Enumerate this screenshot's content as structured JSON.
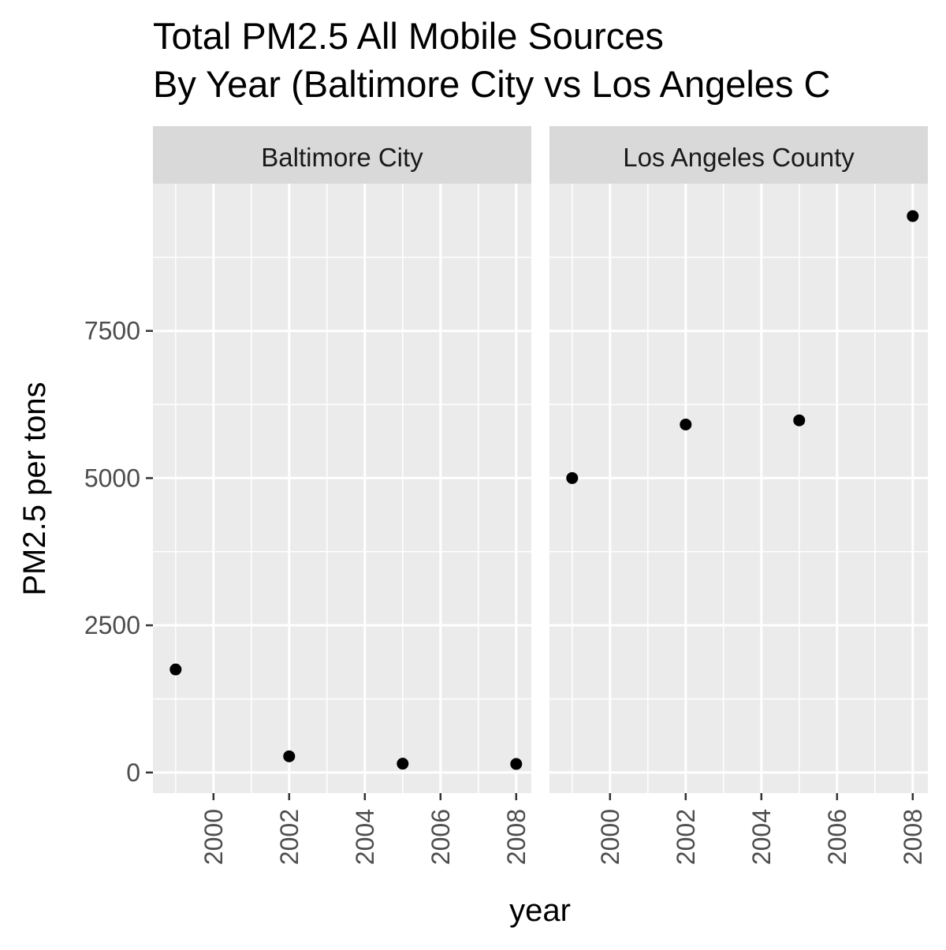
{
  "chart_data": {
    "type": "scatter",
    "title_lines": [
      "Total PM2.5 All Mobile Sources",
      "By Year (Baltimore City vs Los Angeles C"
    ],
    "xlabel": "year",
    "ylabel": "PM2.5 per tons",
    "x_ticks": [
      2000,
      2002,
      2004,
      2006,
      2008
    ],
    "y_ticks": [
      0,
      2500,
      5000,
      7500
    ],
    "xlim": [
      1998.4,
      2008.4
    ],
    "ylim": [
      -350,
      10000
    ],
    "grid": true,
    "legend": "none",
    "facets": [
      {
        "name": "Baltimore City",
        "points": [
          {
            "x": 1999,
            "y": 1750
          },
          {
            "x": 2002,
            "y": 275
          },
          {
            "x": 2005,
            "y": 150
          },
          {
            "x": 2008,
            "y": 145
          }
        ]
      },
      {
        "name": "Los Angeles County",
        "points": [
          {
            "x": 1999,
            "y": 5000
          },
          {
            "x": 2002,
            "y": 5910
          },
          {
            "x": 2005,
            "y": 5980
          },
          {
            "x": 2008,
            "y": 9450
          }
        ]
      }
    ]
  },
  "colors": {
    "panel_background": "#ebebeb",
    "strip_background": "#d9d9d9",
    "grid": "#ffffff",
    "point": "#000000",
    "tick_text": "#4d4d4d"
  }
}
